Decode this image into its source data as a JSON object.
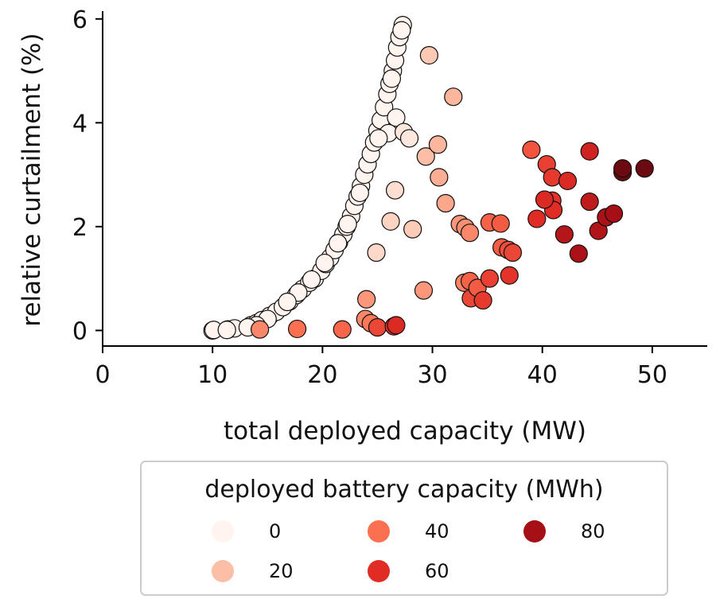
{
  "chart_data": {
    "type": "scatter",
    "xlabel": "total deployed capacity (MW)",
    "ylabel": "relative curtailment (%)",
    "xlim": [
      0,
      55
    ],
    "ylim": [
      -0.3,
      6.15
    ],
    "xticks": [
      0,
      10,
      20,
      30,
      40,
      50
    ],
    "yticks": [
      0,
      2,
      4,
      6
    ],
    "grid": false,
    "colormap": "Reds",
    "legend": {
      "title": "deployed battery capacity (MWh)",
      "placement": "bottom-center",
      "entries": [
        {
          "label": "0",
          "value": 0,
          "color": "#fff4ee"
        },
        {
          "label": "20",
          "value": 20,
          "color": "#fcbea5"
        },
        {
          "label": "40",
          "value": 40,
          "color": "#fb7050"
        },
        {
          "label": "60",
          "value": 60,
          "color": "#e12c26"
        },
        {
          "label": "80",
          "value": 80,
          "color": "#a50f15"
        }
      ]
    },
    "points": [
      {
        "x": 10.0,
        "y": 0.0,
        "c": 0
      },
      {
        "x": 10.1,
        "y": 0.01,
        "c": 0
      },
      {
        "x": 11.4,
        "y": 0.02,
        "c": 0
      },
      {
        "x": 12.0,
        "y": 0.04,
        "c": 0
      },
      {
        "x": 13.5,
        "y": 0.1,
        "c": 0
      },
      {
        "x": 14.0,
        "y": 0.14,
        "c": 0
      },
      {
        "x": 14.5,
        "y": 0.2,
        "c": 0
      },
      {
        "x": 15.2,
        "y": 0.28,
        "c": 0
      },
      {
        "x": 15.8,
        "y": 0.36,
        "c": 0
      },
      {
        "x": 16.4,
        "y": 0.45,
        "c": 0
      },
      {
        "x": 17.0,
        "y": 0.56,
        "c": 0
      },
      {
        "x": 17.6,
        "y": 0.68,
        "c": 0
      },
      {
        "x": 18.2,
        "y": 0.8,
        "c": 0
      },
      {
        "x": 18.8,
        "y": 0.92,
        "c": 0
      },
      {
        "x": 19.3,
        "y": 1.0,
        "c": 0
      },
      {
        "x": 19.9,
        "y": 1.15,
        "c": 0
      },
      {
        "x": 20.3,
        "y": 1.28,
        "c": 0
      },
      {
        "x": 20.7,
        "y": 1.4,
        "c": 0
      },
      {
        "x": 21.1,
        "y": 1.55,
        "c": 0
      },
      {
        "x": 21.5,
        "y": 1.7,
        "c": 0
      },
      {
        "x": 21.9,
        "y": 1.85,
        "c": 0
      },
      {
        "x": 22.2,
        "y": 2.0,
        "c": 0
      },
      {
        "x": 22.6,
        "y": 2.2,
        "c": 0
      },
      {
        "x": 22.9,
        "y": 2.4,
        "c": 0
      },
      {
        "x": 23.2,
        "y": 2.58,
        "c": 0
      },
      {
        "x": 23.5,
        "y": 2.78,
        "c": 0
      },
      {
        "x": 23.8,
        "y": 3.0,
        "c": 0
      },
      {
        "x": 24.1,
        "y": 3.2,
        "c": 0
      },
      {
        "x": 24.4,
        "y": 3.4,
        "c": 0
      },
      {
        "x": 24.7,
        "y": 3.62,
        "c": 0
      },
      {
        "x": 25.0,
        "y": 3.85,
        "c": 0
      },
      {
        "x": 25.3,
        "y": 4.05,
        "c": 0
      },
      {
        "x": 25.6,
        "y": 4.3,
        "c": 0
      },
      {
        "x": 25.9,
        "y": 4.55,
        "c": 0
      },
      {
        "x": 26.1,
        "y": 4.75,
        "c": 0
      },
      {
        "x": 26.4,
        "y": 5.0,
        "c": 0
      },
      {
        "x": 26.6,
        "y": 5.2,
        "c": 0
      },
      {
        "x": 26.8,
        "y": 5.45,
        "c": 0
      },
      {
        "x": 27.0,
        "y": 5.65,
        "c": 0
      },
      {
        "x": 27.3,
        "y": 5.88,
        "c": 0
      },
      {
        "x": 27.2,
        "y": 5.78,
        "c": 0
      },
      {
        "x": 26.3,
        "y": 4.85,
        "c": 0
      },
      {
        "x": 26.7,
        "y": 4.1,
        "c": 0
      },
      {
        "x": 26.0,
        "y": 3.8,
        "c": 0
      },
      {
        "x": 25.1,
        "y": 3.7,
        "c": 0
      },
      {
        "x": 23.4,
        "y": 2.65,
        "c": 0
      },
      {
        "x": 22.3,
        "y": 2.05,
        "c": 0
      },
      {
        "x": 21.4,
        "y": 1.68,
        "c": 0
      },
      {
        "x": 20.2,
        "y": 1.3,
        "c": 0
      },
      {
        "x": 19.0,
        "y": 0.98,
        "c": 0
      },
      {
        "x": 17.8,
        "y": 0.73,
        "c": 0
      },
      {
        "x": 16.8,
        "y": 0.55,
        "c": 0
      },
      {
        "x": 15.0,
        "y": 0.22,
        "c": 0
      },
      {
        "x": 14.0,
        "y": 0.1,
        "c": 0
      },
      {
        "x": 13.2,
        "y": 0.06,
        "c": 0
      },
      {
        "x": 11.3,
        "y": 0.01,
        "c": 0
      },
      {
        "x": 27.4,
        "y": 3.82,
        "c": 5
      },
      {
        "x": 27.9,
        "y": 3.7,
        "c": 5
      },
      {
        "x": 26.6,
        "y": 2.7,
        "c": 8
      },
      {
        "x": 26.2,
        "y": 2.1,
        "c": 12
      },
      {
        "x": 28.2,
        "y": 1.95,
        "c": 15
      },
      {
        "x": 24.9,
        "y": 1.5,
        "c": 10
      },
      {
        "x": 29.7,
        "y": 5.3,
        "c": 16
      },
      {
        "x": 31.9,
        "y": 4.5,
        "c": 22
      },
      {
        "x": 29.4,
        "y": 3.35,
        "c": 20
      },
      {
        "x": 30.5,
        "y": 3.58,
        "c": 22
      },
      {
        "x": 30.6,
        "y": 2.95,
        "c": 24
      },
      {
        "x": 31.2,
        "y": 2.45,
        "c": 26
      },
      {
        "x": 32.5,
        "y": 2.05,
        "c": 30
      },
      {
        "x": 33.0,
        "y": 1.98,
        "c": 32
      },
      {
        "x": 33.4,
        "y": 1.88,
        "c": 34
      },
      {
        "x": 29.2,
        "y": 0.77,
        "c": 30
      },
      {
        "x": 32.9,
        "y": 0.92,
        "c": 35
      },
      {
        "x": 24.0,
        "y": 0.6,
        "c": 30
      },
      {
        "x": 23.9,
        "y": 0.22,
        "c": 34
      },
      {
        "x": 24.4,
        "y": 0.14,
        "c": 38
      },
      {
        "x": 14.3,
        "y": 0.02,
        "c": 34
      },
      {
        "x": 17.7,
        "y": 0.03,
        "c": 40
      },
      {
        "x": 21.8,
        "y": 0.02,
        "c": 43
      },
      {
        "x": 25.0,
        "y": 0.06,
        "c": 52
      },
      {
        "x": 26.5,
        "y": 0.08,
        "c": 58
      },
      {
        "x": 26.7,
        "y": 0.1,
        "c": 62
      },
      {
        "x": 33.4,
        "y": 0.95,
        "c": 44
      },
      {
        "x": 33.5,
        "y": 0.62,
        "c": 52
      },
      {
        "x": 34.1,
        "y": 0.82,
        "c": 46
      },
      {
        "x": 34.6,
        "y": 0.58,
        "c": 56
      },
      {
        "x": 35.2,
        "y": 1.0,
        "c": 54
      },
      {
        "x": 37.0,
        "y": 1.06,
        "c": 58
      },
      {
        "x": 35.2,
        "y": 2.08,
        "c": 44
      },
      {
        "x": 36.2,
        "y": 2.06,
        "c": 46
      },
      {
        "x": 36.3,
        "y": 1.6,
        "c": 46
      },
      {
        "x": 36.9,
        "y": 1.55,
        "c": 50
      },
      {
        "x": 37.3,
        "y": 1.5,
        "c": 52
      },
      {
        "x": 39.0,
        "y": 3.48,
        "c": 48
      },
      {
        "x": 40.4,
        "y": 3.2,
        "c": 54
      },
      {
        "x": 40.9,
        "y": 2.95,
        "c": 56
      },
      {
        "x": 40.9,
        "y": 2.5,
        "c": 58
      },
      {
        "x": 39.5,
        "y": 2.15,
        "c": 60
      },
      {
        "x": 41.0,
        "y": 2.32,
        "c": 60
      },
      {
        "x": 42.3,
        "y": 2.88,
        "c": 62
      },
      {
        "x": 40.2,
        "y": 2.52,
        "c": 62
      },
      {
        "x": 44.3,
        "y": 3.45,
        "c": 66
      },
      {
        "x": 44.3,
        "y": 2.48,
        "c": 72
      },
      {
        "x": 42.0,
        "y": 1.85,
        "c": 75
      },
      {
        "x": 43.3,
        "y": 1.48,
        "c": 78
      },
      {
        "x": 45.1,
        "y": 1.92,
        "c": 76
      },
      {
        "x": 45.8,
        "y": 2.18,
        "c": 78
      },
      {
        "x": 46.5,
        "y": 2.25,
        "c": 82
      },
      {
        "x": 47.3,
        "y": 3.05,
        "c": 86
      },
      {
        "x": 47.3,
        "y": 3.12,
        "c": 88
      },
      {
        "x": 49.3,
        "y": 3.12,
        "c": 92
      }
    ]
  }
}
